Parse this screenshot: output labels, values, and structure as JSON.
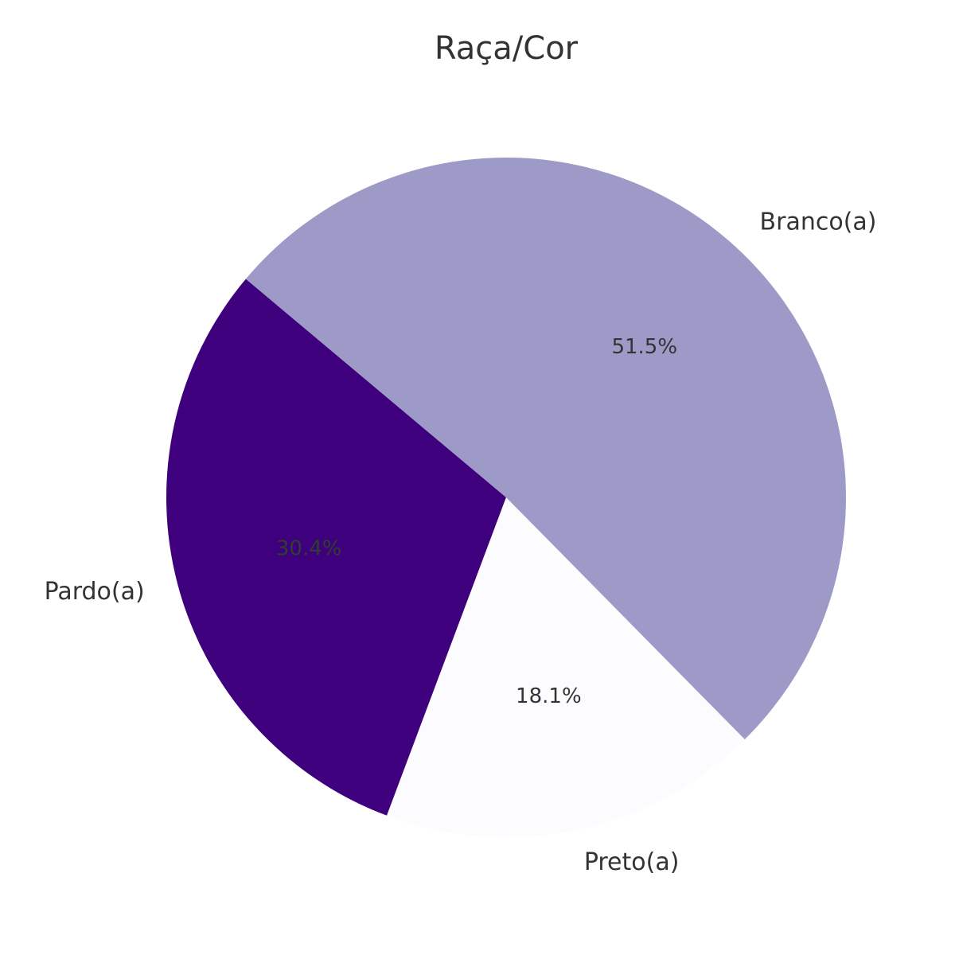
{
  "chart_data": {
    "type": "pie",
    "title": "Raça/Cor",
    "start_angle_deg": 140,
    "direction": "counterclockwise",
    "slices": [
      {
        "label": "Pardo(a)",
        "value": 30.4,
        "pct_label": "30.4%",
        "color": "#3f007d",
        "pct_color": "#2f3f2f"
      },
      {
        "label": "Preto(a)",
        "value": 18.1,
        "pct_label": "18.1%",
        "color": "#fcfbfd",
        "pct_color": "#333333"
      },
      {
        "label": "Branco(a)",
        "value": 51.5,
        "pct_label": "51.5%",
        "color": "#9e9ac8",
        "pct_color": "#333333"
      }
    ]
  }
}
